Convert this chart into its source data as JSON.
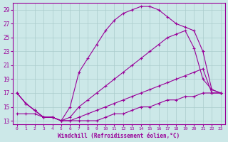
{
  "xlabel": "Windchill (Refroidissement éolien,°C)",
  "background_color": "#cce8e8",
  "line_color": "#990099",
  "grid_color": "#aacccc",
  "xlim": [
    -0.5,
    23.5
  ],
  "ylim": [
    12.5,
    30
  ],
  "xticks": [
    0,
    1,
    2,
    3,
    4,
    5,
    6,
    7,
    8,
    9,
    10,
    11,
    12,
    13,
    14,
    15,
    16,
    17,
    18,
    19,
    20,
    21,
    22,
    23
  ],
  "yticks": [
    13,
    15,
    17,
    19,
    21,
    23,
    25,
    27,
    29
  ],
  "lines": [
    {
      "x": [
        0,
        1,
        2,
        3,
        4,
        5,
        6,
        7,
        8,
        9,
        10,
        11,
        12,
        13,
        14,
        15,
        16,
        17,
        18,
        19,
        20,
        21,
        22,
        23
      ],
      "y": [
        17,
        15.5,
        14.5,
        13.5,
        13.5,
        13,
        15,
        20,
        22,
        24,
        26,
        27.5,
        28.5,
        29,
        29.5,
        29.5,
        29,
        28,
        27,
        26.5,
        26,
        23,
        17.5,
        17
      ]
    },
    {
      "x": [
        0,
        1,
        2,
        3,
        4,
        5,
        6,
        7,
        8,
        9,
        10,
        11,
        12,
        13,
        14,
        15,
        16,
        17,
        18,
        19,
        20,
        21,
        22,
        23
      ],
      "y": [
        17,
        15.5,
        14.5,
        13.5,
        13.5,
        13,
        13.5,
        15,
        16,
        17,
        18,
        19,
        20,
        21,
        22,
        23,
        24,
        25,
        25.5,
        26,
        23.5,
        19,
        17.5,
        17
      ]
    },
    {
      "x": [
        0,
        1,
        2,
        3,
        4,
        5,
        6,
        7,
        8,
        9,
        10,
        11,
        12,
        13,
        14,
        15,
        16,
        17,
        18,
        19,
        20,
        21,
        22,
        23
      ],
      "y": [
        17,
        15.5,
        14.5,
        13.5,
        13.5,
        13,
        13,
        13.5,
        14,
        14.5,
        15,
        15.5,
        16,
        16.5,
        17,
        17.5,
        18,
        18.5,
        19,
        19.5,
        20,
        20.5,
        17,
        17
      ]
    },
    {
      "x": [
        0,
        1,
        2,
        3,
        4,
        5,
        6,
        7,
        8,
        9,
        10,
        11,
        12,
        13,
        14,
        15,
        16,
        17,
        18,
        19,
        20,
        21,
        22,
        23
      ],
      "y": [
        14,
        14,
        14,
        13.5,
        13.5,
        13,
        13,
        13,
        13,
        13,
        13.5,
        14,
        14,
        14.5,
        15,
        15,
        15.5,
        16,
        16,
        16.5,
        16.5,
        17,
        17,
        17
      ]
    }
  ]
}
